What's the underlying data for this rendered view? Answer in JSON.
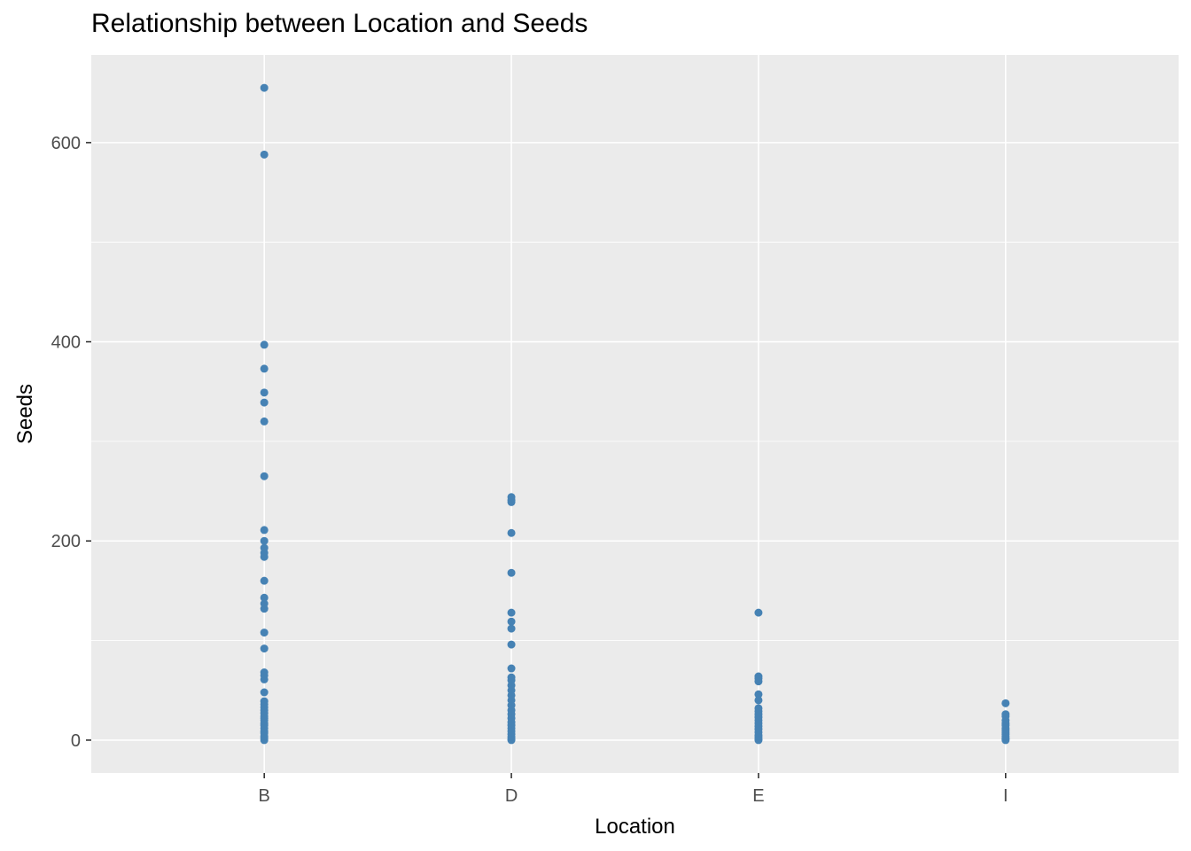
{
  "chart_data": {
    "type": "scatter",
    "title": "Relationship between Location and Seeds",
    "xlabel": "Location",
    "ylabel": "Seeds",
    "categories": [
      "B",
      "D",
      "E",
      "I"
    ],
    "ylim": [
      -33,
      688
    ],
    "yticks": [
      0,
      200,
      400,
      600
    ],
    "y_minor_ticks": [
      100,
      300,
      500
    ],
    "grid": true,
    "point_color": "#4682B4",
    "panel_background": "#EBEBEB",
    "grid_color": "#FFFFFF",
    "series": [
      {
        "category": "B",
        "values": [
          655,
          588,
          397,
          373,
          349,
          339,
          320,
          265,
          211,
          200,
          193,
          188,
          184,
          160,
          143,
          137,
          132,
          108,
          92,
          68,
          65,
          61,
          48,
          39,
          36,
          33,
          30,
          27,
          24,
          22,
          20,
          17,
          15,
          12,
          9,
          7,
          4,
          2,
          0
        ]
      },
      {
        "category": "D",
        "values": [
          244,
          241,
          239,
          208,
          168,
          128,
          119,
          112,
          96,
          72,
          63,
          60,
          55,
          50,
          45,
          40,
          35,
          30,
          26,
          22,
          18,
          15,
          12,
          9,
          6,
          3,
          1,
          0
        ]
      },
      {
        "category": "E",
        "values": [
          128,
          64,
          62,
          59,
          46,
          40,
          32,
          29,
          26,
          23,
          20,
          17,
          14,
          11,
          8,
          5,
          3,
          1,
          0
        ]
      },
      {
        "category": "I",
        "values": [
          37,
          26,
          24,
          20,
          17,
          15,
          12,
          10,
          8,
          6,
          4,
          2,
          1,
          0
        ]
      }
    ]
  }
}
